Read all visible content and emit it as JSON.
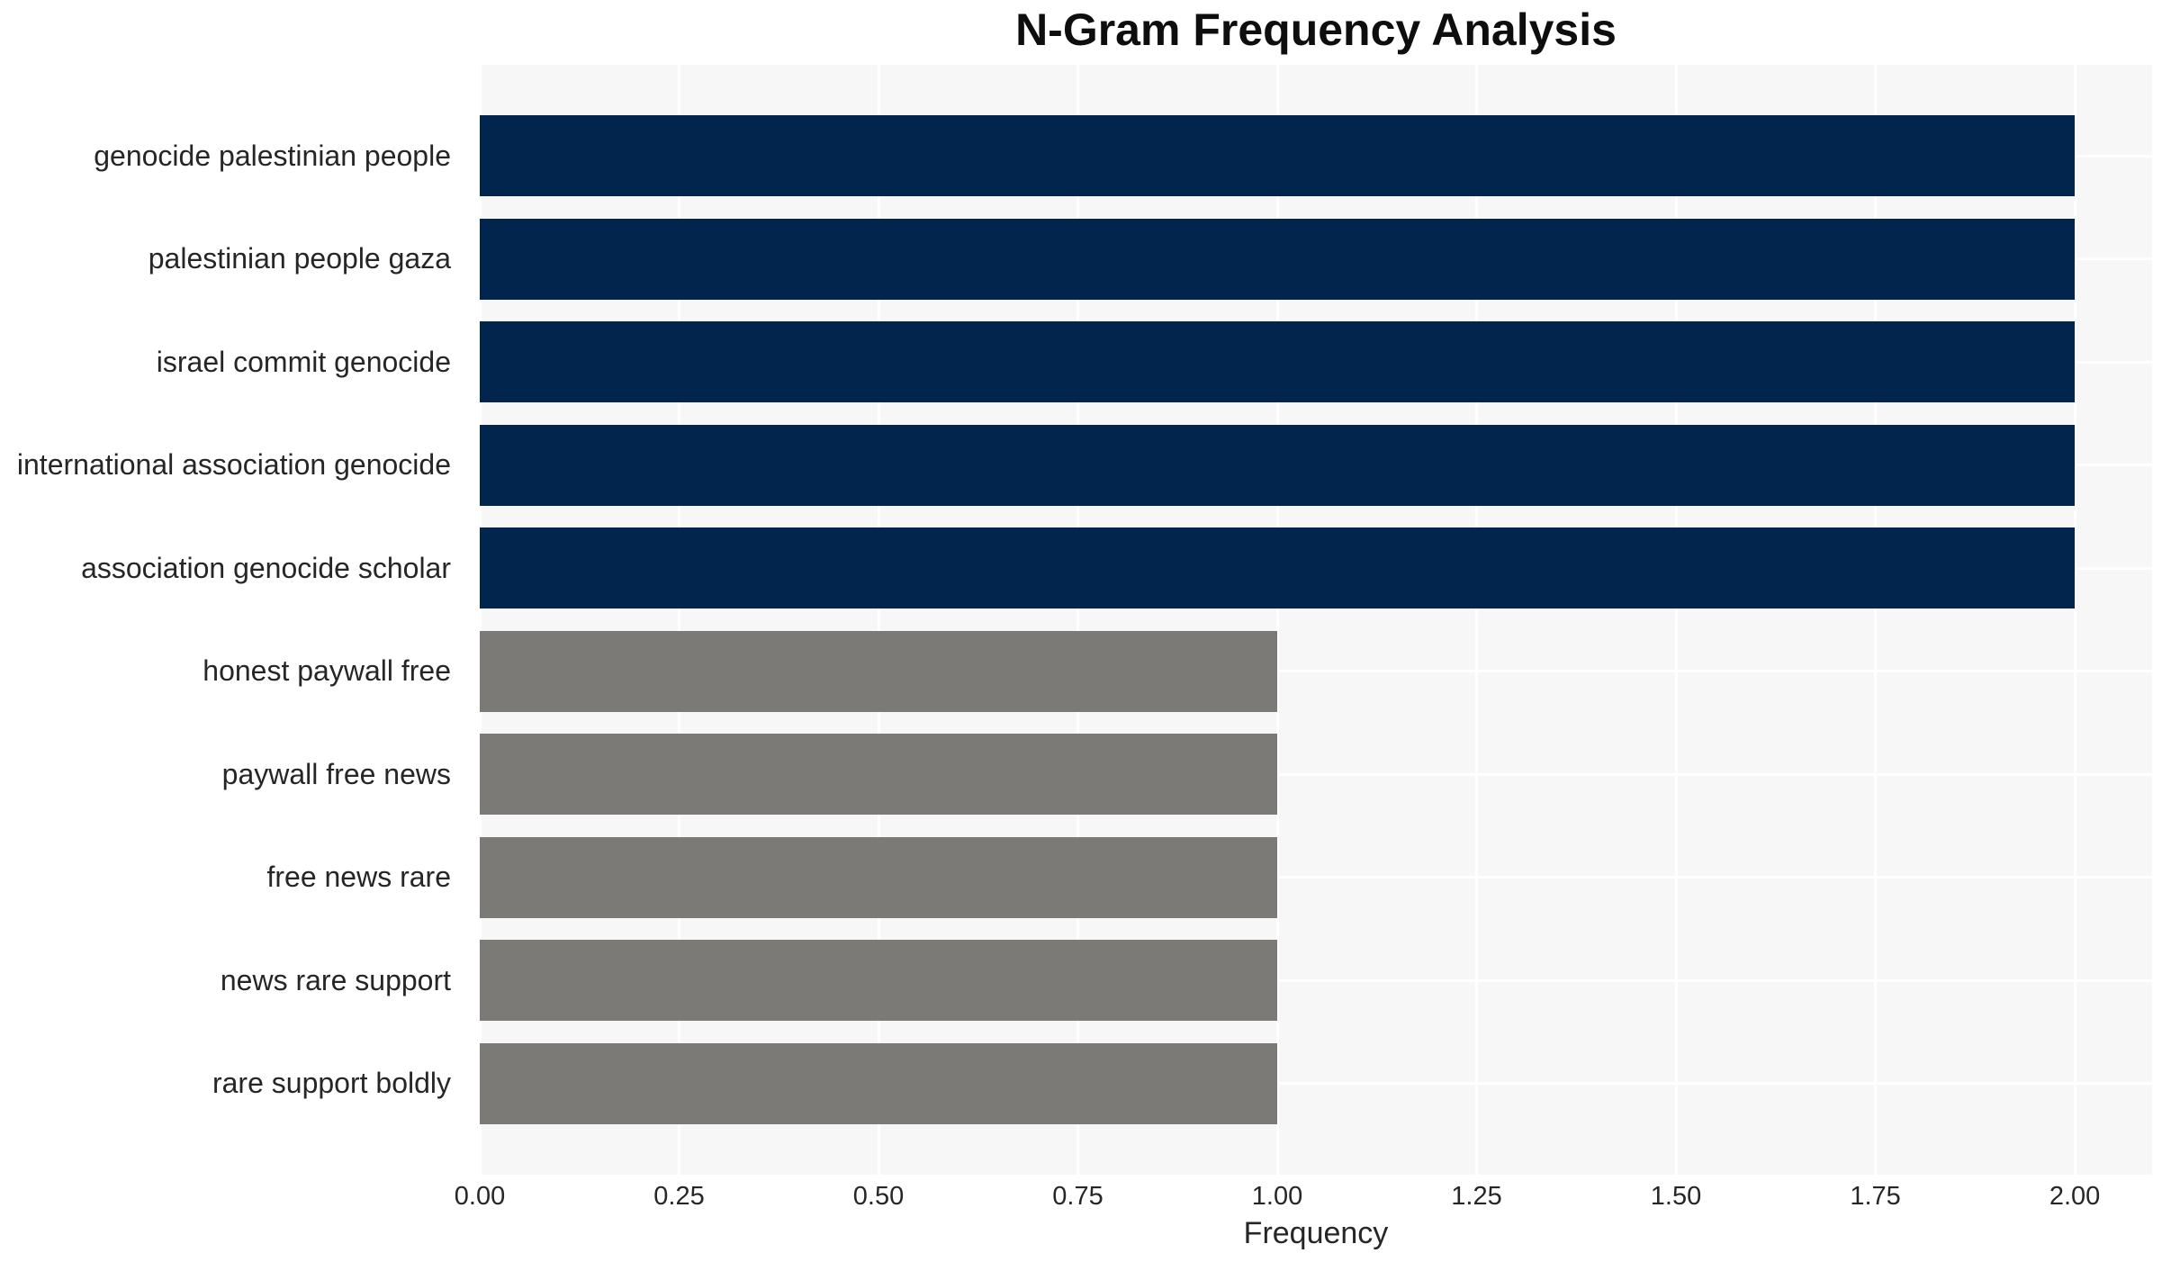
{
  "chart_data": {
    "type": "bar",
    "orientation": "horizontal",
    "title": "N-Gram Frequency Analysis",
    "xlabel": "Frequency",
    "ylabel": "",
    "grid": true,
    "legend": false,
    "xlim": [
      0,
      2.097
    ],
    "categories": [
      "genocide palestinian people",
      "palestinian people gaza",
      "israel commit genocide",
      "international association genocide",
      "association genocide scholar",
      "honest paywall free",
      "paywall free news",
      "free news rare",
      "news rare support",
      "rare support boldly"
    ],
    "values": [
      2,
      2,
      2,
      2,
      2,
      1,
      1,
      1,
      1,
      1
    ],
    "bar_colors": [
      "#02254e",
      "#02254e",
      "#02254e",
      "#02254e",
      "#02254e",
      "#7c7a77",
      "#7c7a77",
      "#7c7a77",
      "#7c7a77",
      "#7c7a77"
    ],
    "x_tick_values": [
      0,
      0.25,
      0.5,
      0.75,
      1.0,
      1.25,
      1.5,
      1.75,
      2.0
    ],
    "x_tick_labels": [
      "0.00",
      "0.25",
      "0.50",
      "0.75",
      "1.00",
      "1.25",
      "1.50",
      "1.75",
      "2.00"
    ],
    "colors": {
      "high_freq_bar": "#02254e",
      "low_freq_bar": "#7c7a77",
      "plot_background": "#f7f7f7",
      "gridline": "#ffffff",
      "figure_background": "#ffffff",
      "tick_text": "#262626",
      "title_text": "#0e0e0e"
    }
  }
}
